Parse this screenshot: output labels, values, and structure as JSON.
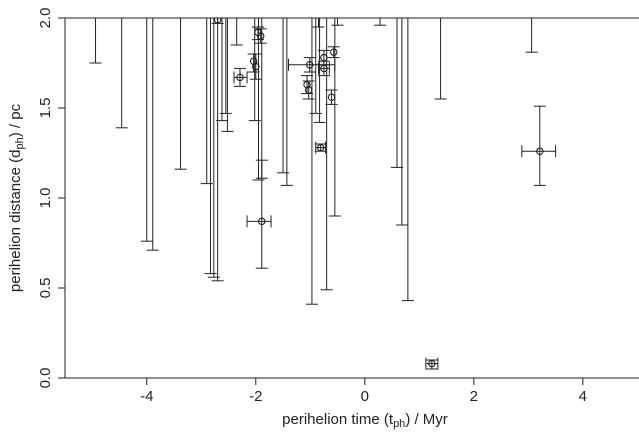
{
  "chart_data": {
    "type": "scatter",
    "xlabel": {
      "text": "perihelion time (t",
      "sub": "ph",
      "tail": ") / Myr"
    },
    "ylabel": {
      "text": "perihelion distance (d",
      "sub": "ph",
      "tail": ") / pc"
    },
    "xlim": [
      -5.5,
      5.03
    ],
    "ylim": [
      0,
      2
    ],
    "xticks": [
      -4,
      -2,
      0,
      2,
      4
    ],
    "yticks": [
      {
        "value": 0,
        "label": "0.0"
      },
      0.5,
      {
        "value": 1,
        "label": "1.0"
      },
      1.5,
      {
        "value": 2,
        "label": "2.0"
      }
    ],
    "color": "#222222",
    "points": {
      "x": [
        -2.7,
        -2.29,
        -2.04,
        -2.0,
        -1.96,
        -1.91,
        -1.89,
        -1.01,
        -1.06,
        -1.03,
        -0.75,
        -0.75,
        -0.61,
        -0.57,
        -0.81,
        1.23,
        3.21
      ],
      "y": [
        1.99,
        1.67,
        1.76,
        1.73,
        1.92,
        1.9,
        0.87,
        1.74,
        1.63,
        1.6,
        1.78,
        1.72,
        1.56,
        1.81,
        1.28,
        0.08,
        1.26
      ],
      "y_lower": [
        1.97,
        1.62,
        1.7,
        1.66,
        1.88,
        1.86,
        0.61,
        1.7,
        1.58,
        1.55,
        1.74,
        1.68,
        1.52,
        1.78,
        1.26,
        0.05,
        1.07
      ],
      "y_upper": [
        2.0,
        1.72,
        1.8,
        1.8,
        1.95,
        1.94,
        1.21,
        1.78,
        1.68,
        1.65,
        1.82,
        1.76,
        1.6,
        1.84,
        1.3,
        0.1,
        1.51
      ],
      "x_lower": [
        null,
        -2.4,
        null,
        null,
        null,
        null,
        -2.16,
        -1.4,
        null,
        null,
        null,
        -0.85,
        null,
        null,
        -0.9,
        1.12,
        2.88
      ],
      "x_upper": [
        null,
        -2.16,
        null,
        null,
        null,
        null,
        -1.72,
        -0.55,
        null,
        null,
        null,
        -0.65,
        null,
        null,
        -0.72,
        1.34,
        3.5
      ]
    },
    "truncated_bars": {
      "x": [
        -4.94,
        -4.46,
        -4.0,
        -3.89,
        -3.38,
        -2.9,
        -2.83,
        -2.77,
        -2.7,
        -2.62,
        -2.55,
        -2.52,
        -2.35,
        -2.02,
        -1.95,
        -1.89,
        -1.5,
        -1.43,
        -0.97,
        -0.9,
        -0.85,
        -0.83,
        -0.7,
        -0.55,
        -0.5,
        0.28,
        0.59,
        0.68,
        0.79,
        1.39,
        3.06
      ],
      "y_lower": [
        1.75,
        1.39,
        0.76,
        0.71,
        1.16,
        1.08,
        0.58,
        0.56,
        0.54,
        1.43,
        1.47,
        1.37,
        1.85,
        1.43,
        1.1,
        1.11,
        1.14,
        1.07,
        0.41,
        1.47,
        1.95,
        1.42,
        0.49,
        0.9,
        1.96,
        1.96,
        1.17,
        0.85,
        0.43,
        1.55,
        1.81
      ]
    }
  }
}
